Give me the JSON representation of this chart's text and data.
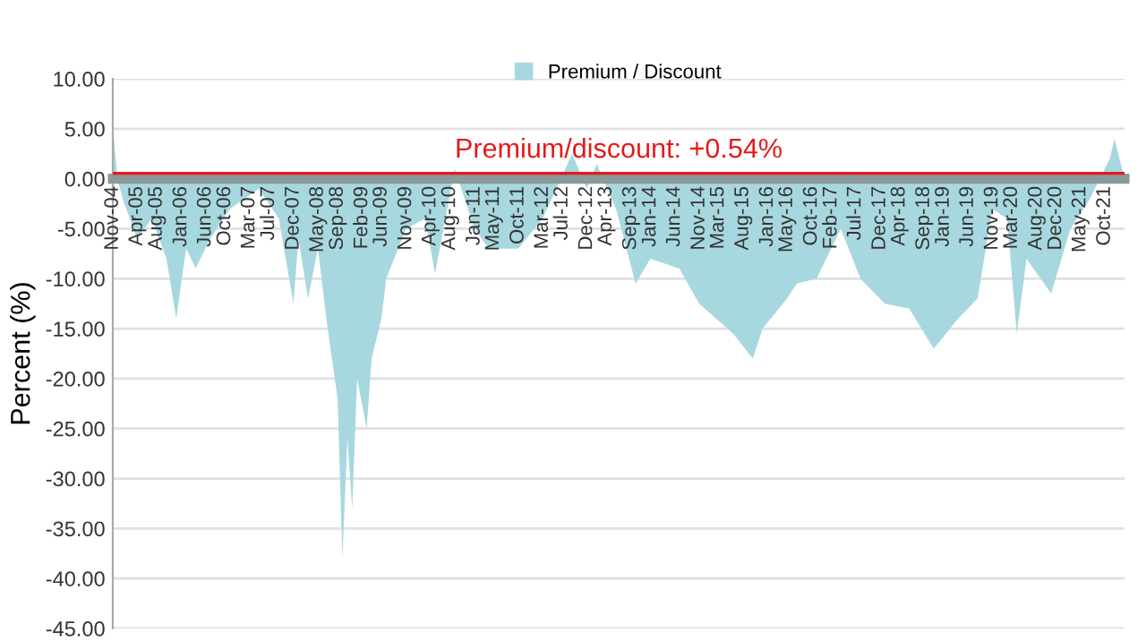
{
  "chart_data": {
    "type": "area",
    "ylabel": "Percent (%)",
    "legend": "top",
    "grid": "y",
    "x": [
      "2004-11",
      "2004-12",
      "2005-01",
      "2005-04",
      "2005-07",
      "2005-10",
      "2005-12",
      "2006-02",
      "2006-04",
      "2006-07",
      "2006-11",
      "2007-05",
      "2007-09",
      "2007-12",
      "2008-01",
      "2008-03",
      "2008-05",
      "2008-07",
      "2008-09",
      "2008-10",
      "2008-11",
      "2008-12",
      "2009-01",
      "2009-03",
      "2009-04",
      "2009-06",
      "2009-07",
      "2009-11",
      "2010-03",
      "2010-05",
      "2010-09",
      "2011-01",
      "2011-04",
      "2011-10",
      "2012-03",
      "2012-09",
      "2012-12",
      "2013-02",
      "2013-06",
      "2013-10",
      "2014-01",
      "2014-07",
      "2014-11",
      "2015-06",
      "2015-10",
      "2015-12",
      "2016-05",
      "2016-07",
      "2016-11",
      "2017-04",
      "2017-08",
      "2018-01",
      "2018-06",
      "2018-11",
      "2019-04",
      "2019-08",
      "2019-11",
      "2020-02",
      "2020-04",
      "2020-06",
      "2020-11",
      "2021-03",
      "2021-07",
      "2021-11",
      "2021-12",
      "2022-02"
    ],
    "series": [
      {
        "name": "Premium / Discount",
        "color": "#a8d8df",
        "values": [
          5,
          0,
          -2,
          -6,
          -4,
          -8,
          -14,
          -7,
          -9,
          -6,
          -3,
          -1,
          -4,
          -12.5,
          -6,
          -12,
          -7,
          -15,
          -22,
          -38,
          -26,
          -33,
          -20,
          -25,
          -18,
          -14,
          -10,
          -5,
          -4,
          -9.5,
          1,
          -5,
          -7,
          -7,
          -4,
          2.5,
          -1,
          1.5,
          -3,
          -10.5,
          -8,
          -9,
          -12.5,
          -15.5,
          -18,
          -15,
          -12,
          -10.5,
          -10,
          -5,
          -10,
          -12.5,
          -13,
          -17,
          -14,
          -12,
          -3,
          -4,
          -15.5,
          -8,
          -11.5,
          -5,
          -2,
          2,
          4,
          0
        ]
      }
    ],
    "xlim": [
      "2004-11",
      "2022-02"
    ],
    "xticks": [
      {
        "value": "2004-11",
        "label": "Nov-04"
      },
      {
        "value": "2005-04",
        "label": "Apr-05"
      },
      {
        "value": "2005-08",
        "label": "Aug-05"
      },
      {
        "value": "2006-01",
        "label": "Jan-06"
      },
      {
        "value": "2006-06",
        "label": "Jun-06"
      },
      {
        "value": "2006-10",
        "label": "Oct-06"
      },
      {
        "value": "2007-03",
        "label": "Mar-07"
      },
      {
        "value": "2007-07",
        "label": "Jul-07"
      },
      {
        "value": "2007-12",
        "label": "Dec-07"
      },
      {
        "value": "2008-05",
        "label": "May-08"
      },
      {
        "value": "2008-09",
        "label": "Sep-08"
      },
      {
        "value": "2009-02",
        "label": "Feb-09"
      },
      {
        "value": "2009-06",
        "label": "Jun-09"
      },
      {
        "value": "2009-11",
        "label": "Nov-09"
      },
      {
        "value": "2010-04",
        "label": "Apr-10"
      },
      {
        "value": "2010-08",
        "label": "Aug-10"
      },
      {
        "value": "2011-01",
        "label": "Jan-11"
      },
      {
        "value": "2011-05",
        "label": "May-11"
      },
      {
        "value": "2011-10",
        "label": "Oct-11"
      },
      {
        "value": "2012-03",
        "label": "Mar-12"
      },
      {
        "value": "2012-07",
        "label": "Jul-12"
      },
      {
        "value": "2012-12",
        "label": "Dec-12"
      },
      {
        "value": "2013-04",
        "label": "Apr-13"
      },
      {
        "value": "2013-09",
        "label": "Sep-13"
      },
      {
        "value": "2014-01",
        "label": "Jan-14"
      },
      {
        "value": "2014-06",
        "label": "Jun-14"
      },
      {
        "value": "2014-11",
        "label": "Nov-14"
      },
      {
        "value": "2015-03",
        "label": "Mar-15"
      },
      {
        "value": "2015-08",
        "label": "Aug-15"
      },
      {
        "value": "2016-01",
        "label": "Jan-16"
      },
      {
        "value": "2016-05",
        "label": "May-16"
      },
      {
        "value": "2016-10",
        "label": "Oct-16"
      },
      {
        "value": "2017-02",
        "label": "Feb-17"
      },
      {
        "value": "2017-07",
        "label": "Jul-17"
      },
      {
        "value": "2017-12",
        "label": "Dec-17"
      },
      {
        "value": "2018-04",
        "label": "Apr-18"
      },
      {
        "value": "2018-09",
        "label": "Sep-18"
      },
      {
        "value": "2019-01",
        "label": "Jan-19"
      },
      {
        "value": "2019-06",
        "label": "Jun-19"
      },
      {
        "value": "2019-11",
        "label": "Nov-19"
      },
      {
        "value": "2020-03",
        "label": "Mar-20"
      },
      {
        "value": "2020-08",
        "label": "Aug-20"
      },
      {
        "value": "2020-12",
        "label": "Dec-20"
      },
      {
        "value": "2021-05",
        "label": "May-21"
      },
      {
        "value": "2021-10",
        "label": "Oct-21"
      }
    ],
    "ylim": [
      -45,
      10
    ],
    "yticks": [
      {
        "value": 10,
        "label": "10.00"
      },
      {
        "value": 5,
        "label": "5.00"
      },
      {
        "value": 0,
        "label": "0.00"
      },
      {
        "value": -5,
        "label": "-5.00"
      },
      {
        "value": -10,
        "label": "-10.00"
      },
      {
        "value": -15,
        "label": "-15.00"
      },
      {
        "value": -20,
        "label": "-20.00"
      },
      {
        "value": -25,
        "label": "-25.00"
      },
      {
        "value": -30,
        "label": "-30.00"
      },
      {
        "value": -35,
        "label": "-35.00"
      },
      {
        "value": -40,
        "label": "-40.00"
      },
      {
        "value": -45,
        "label": "-45.00"
      }
    ],
    "ref_lines": [
      {
        "axis": "y",
        "value": 0.54,
        "label": "Premium/discount: +0.54%",
        "color": "#e31a1c"
      }
    ]
  }
}
